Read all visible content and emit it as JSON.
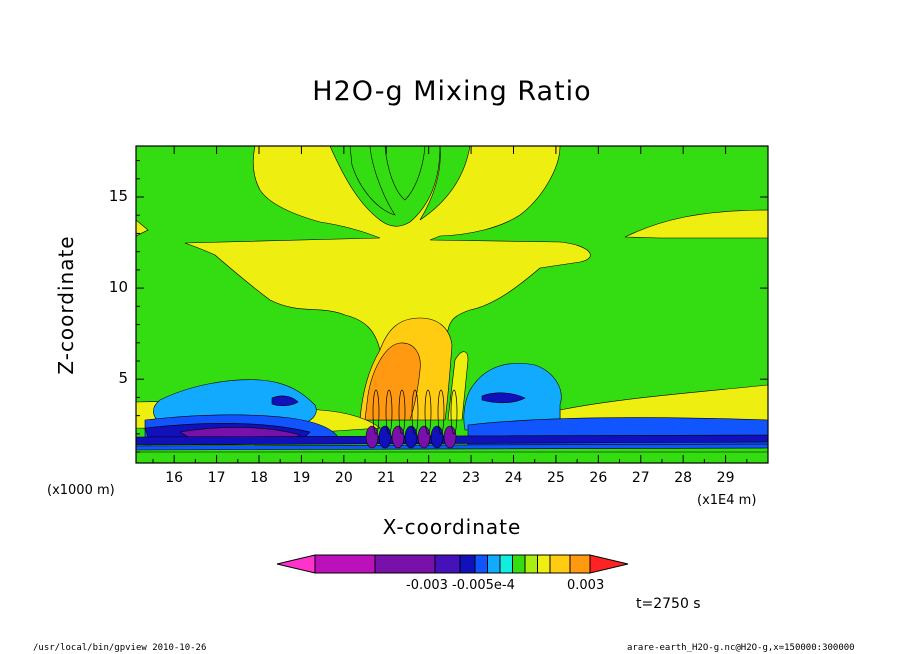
{
  "chart_data": {
    "type": "heatmap",
    "title": "H2O-g Mixing Ratio",
    "xlabel": "X-coordinate",
    "ylabel": "Z-coordinate",
    "x_unit_left": "(x1000 m)",
    "x_unit_right": "(x1E4 m)",
    "x_ticks": [
      "16",
      "17",
      "18",
      "19",
      "20",
      "21",
      "22",
      "23",
      "24",
      "25",
      "26",
      "27",
      "28",
      "29"
    ],
    "y_ticks": [
      "5",
      "10",
      "15"
    ],
    "xlim": [
      15.1,
      30.0
    ],
    "ylim": [
      0.4,
      17.8
    ],
    "background_color": "#33dd11",
    "colorbar": {
      "colors": [
        "#ff33cc",
        "#bb11bb",
        "#7711aa",
        "#4411bb",
        "#1111bb",
        "#1155ff",
        "#11aaff",
        "#11eedd",
        "#33dd11",
        "#aaee11",
        "#eeee11",
        "#ffcc11",
        "#ff9911",
        "#ff2222"
      ],
      "tick_labels": [
        "-0.003",
        "-0.005e-4",
        "0.003"
      ]
    },
    "time_label": "t=2750 s"
  },
  "footer": {
    "left": "/usr/local/bin/gpview  2010-10-26",
    "right": "arare-earth_H2O-g.nc@H2O-g,x=150000:300000"
  }
}
